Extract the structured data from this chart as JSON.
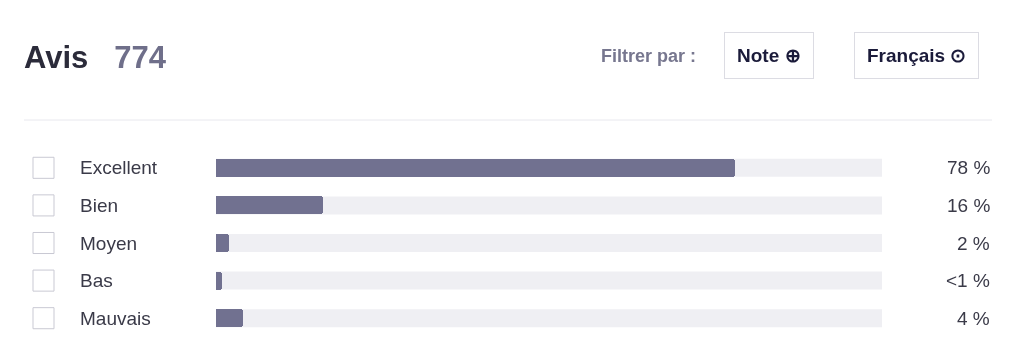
{
  "chart_data": {
    "type": "bar",
    "orientation": "horizontal",
    "title": "Avis",
    "subtitle": "774",
    "categories": [
      "Excellent",
      "Bien",
      "Moyen",
      "Bas",
      "Mauvais"
    ],
    "values": [
      78,
      16,
      2,
      0.9,
      4
    ],
    "value_labels": [
      "78 %",
      "16 %",
      "2 %",
      "<1 %",
      "4 %"
    ],
    "color": "#717190",
    "xlim": [
      0,
      100
    ],
    "tick_labels": "y",
    "grid": false,
    "legend": false,
    "annotations": [
      "Filtrer par :",
      "Note ⊕",
      "Français ⊙"
    ]
  }
}
